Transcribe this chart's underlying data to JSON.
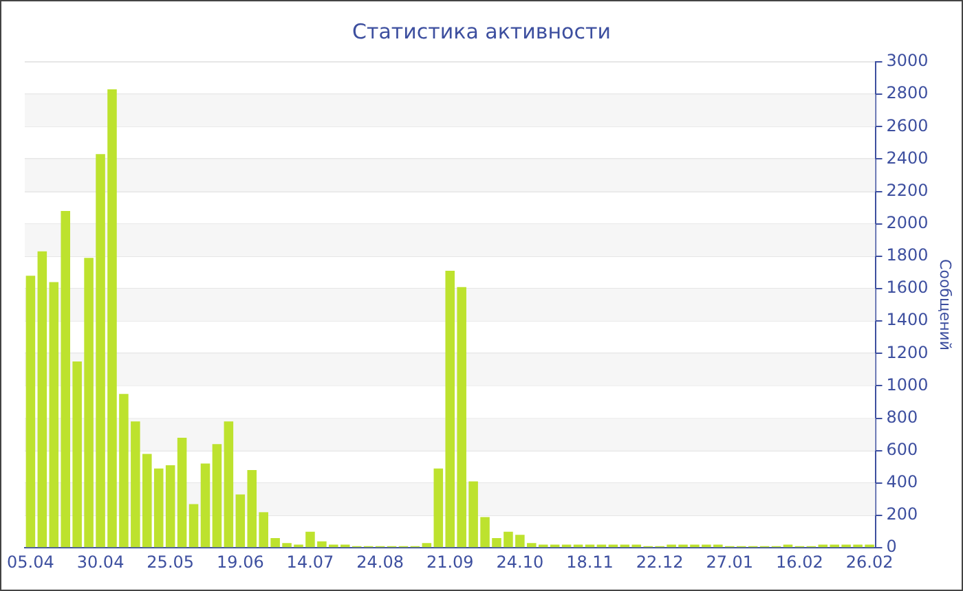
{
  "chart_data": {
    "type": "bar",
    "title": "Статистика активности",
    "ylabel": "Сообщений",
    "categories": [
      "05.04",
      null,
      null,
      null,
      null,
      null,
      "30.04",
      null,
      null,
      null,
      null,
      null,
      "25.05",
      null,
      null,
      null,
      null,
      null,
      "19.06",
      null,
      null,
      null,
      null,
      null,
      "14.07",
      null,
      null,
      null,
      null,
      null,
      "24.08",
      null,
      null,
      null,
      null,
      null,
      "21.09",
      null,
      null,
      null,
      null,
      null,
      "24.10",
      null,
      null,
      null,
      null,
      null,
      "18.11",
      null,
      null,
      null,
      null,
      null,
      "22.12",
      null,
      null,
      null,
      null,
      null,
      "27.01",
      null,
      null,
      null,
      null,
      null,
      "16.02",
      null,
      null,
      null,
      null,
      null,
      "26.02"
    ],
    "values": [
      1680,
      1830,
      1640,
      2080,
      1150,
      1790,
      2430,
      2830,
      950,
      780,
      580,
      490,
      510,
      680,
      270,
      520,
      640,
      780,
      330,
      480,
      220,
      60,
      30,
      20,
      100,
      40,
      20,
      20,
      10,
      10,
      10,
      10,
      10,
      10,
      30,
      490,
      1710,
      1610,
      410,
      190,
      60,
      100,
      80,
      30,
      20,
      20,
      20,
      20,
      20,
      20,
      20,
      20,
      20,
      10,
      10,
      20,
      20,
      20,
      20,
      20,
      10,
      10,
      10,
      10,
      10,
      20,
      10,
      10,
      20,
      20,
      20,
      20,
      20
    ],
    "color": "#bde22e",
    "ylim": [
      0,
      3000
    ],
    "yticks": [
      0,
      200,
      400,
      600,
      800,
      1000,
      1200,
      1400,
      1600,
      1800,
      2000,
      2200,
      2400,
      2600,
      2800,
      3000
    ],
    "grid": "y"
  }
}
